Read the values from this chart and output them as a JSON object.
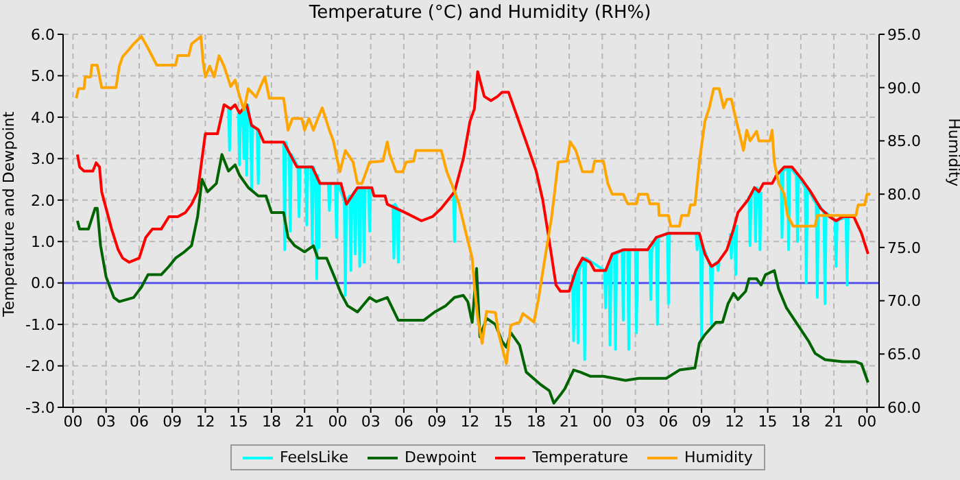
{
  "chart_data": {
    "type": "line",
    "title": "Temperature (°C) and Humidity (RH%)",
    "ylabel": "Temperature and Dewpoint",
    "y2label": "Humidity",
    "xlim": [
      -0.9,
      73.1
    ],
    "xticks": [
      {
        "value": 0,
        "label": "00"
      },
      {
        "value": 3,
        "label": "03"
      },
      {
        "value": 6,
        "label": "06"
      },
      {
        "value": 9,
        "label": "09"
      },
      {
        "value": 12,
        "label": "12"
      },
      {
        "value": 15,
        "label": "15"
      },
      {
        "value": 18,
        "label": "18"
      },
      {
        "value": 21,
        "label": "21"
      },
      {
        "value": 24,
        "label": "00"
      },
      {
        "value": 27,
        "label": "03"
      },
      {
        "value": 30,
        "label": "06"
      },
      {
        "value": 33,
        "label": "09"
      },
      {
        "value": 36,
        "label": "12"
      },
      {
        "value": 39,
        "label": "15"
      },
      {
        "value": 42,
        "label": "18"
      },
      {
        "value": 45,
        "label": "21"
      },
      {
        "value": 48,
        "label": "00"
      },
      {
        "value": 51,
        "label": "03"
      },
      {
        "value": 54,
        "label": "06"
      },
      {
        "value": 57,
        "label": "09"
      },
      {
        "value": 60,
        "label": "12"
      },
      {
        "value": 63,
        "label": "15"
      },
      {
        "value": 66,
        "label": "18"
      },
      {
        "value": 69,
        "label": "21"
      },
      {
        "value": 72,
        "label": "00"
      }
    ],
    "ylim": [
      -3,
      6
    ],
    "yticks": [
      {
        "value": -3,
        "label": "-3.0"
      },
      {
        "value": -2,
        "label": "-2.0"
      },
      {
        "value": -1,
        "label": "-1.0"
      },
      {
        "value": 0,
        "label": "0.0"
      },
      {
        "value": 1,
        "label": "1.0"
      },
      {
        "value": 2,
        "label": "2.0"
      },
      {
        "value": 3,
        "label": "3.0"
      },
      {
        "value": 4,
        "label": "4.0"
      },
      {
        "value": 5,
        "label": "5.0"
      },
      {
        "value": 6,
        "label": "6.0"
      }
    ],
    "y2lim": [
      60,
      95
    ],
    "y2ticks": [
      {
        "value": 60,
        "label": "60.0"
      },
      {
        "value": 65,
        "label": "65.0"
      },
      {
        "value": 70,
        "label": "70.0"
      },
      {
        "value": 75,
        "label": "75.0"
      },
      {
        "value": 80,
        "label": "80.0"
      },
      {
        "value": 85,
        "label": "85.0"
      },
      {
        "value": 90,
        "label": "90.0"
      },
      {
        "value": 95,
        "label": "95.0"
      }
    ],
    "grid": true,
    "legend": "bottom",
    "line_style": "solid",
    "marker": "none",
    "ref_lines": [
      {
        "axis": "y",
        "value": 0,
        "color": "#5555ee"
      }
    ],
    "series": [
      {
        "name": "FeelsLike",
        "color": "#00ffff",
        "x": [
          14.1,
          14.2,
          14.3,
          14.5,
          15.0,
          15.1,
          15.2,
          15.4,
          15.5,
          15.6,
          15.65,
          15.75,
          15.85,
          16.1,
          16.2,
          16.3,
          16.7,
          16.8,
          16.9,
          17.0,
          19.1,
          19.2,
          19.3,
          19.6,
          19.7,
          19.8,
          20.4,
          20.5,
          20.6,
          21.1,
          21.2,
          21.3,
          21.6,
          21.7,
          21.8,
          22.0,
          22.1,
          22.2,
          22.25,
          22.3,
          22.35,
          23.15,
          23.25,
          23.35,
          23.8,
          23.9,
          24.0,
          24.6,
          24.7,
          24.8,
          25.1,
          25.2,
          25.3,
          25.5,
          25.6,
          25.7,
          25.9,
          26.0,
          26.1,
          26.3,
          26.4,
          26.5,
          26.8,
          26.9,
          27.0,
          28.0,
          29.0,
          29.1,
          29.2,
          29.4,
          29.5,
          29.6,
          30.0,
          34.5,
          34.6,
          34.7,
          40.0,
          45.3,
          45.4,
          45.5,
          45.7,
          45.8,
          45.9,
          46.3,
          46.4,
          46.5,
          48.2,
          48.3,
          48.4,
          48.6,
          48.7,
          48.8,
          49.1,
          49.2,
          49.3,
          49.8,
          49.9,
          50.0,
          50.3,
          50.4,
          50.5,
          51.0,
          51.1,
          51.2,
          52.3,
          52.4,
          52.5,
          52.9,
          53.0,
          53.1,
          53.9,
          54.0,
          54.1,
          56.5,
          56.6,
          56.7,
          56.9,
          57.0,
          57.1,
          57.8,
          57.9,
          58.0,
          58.4,
          58.5,
          58.6,
          59.0,
          59.6,
          59.7,
          59.8,
          60.0,
          60.1,
          60.2,
          60.8,
          61.3,
          61.4,
          61.5,
          61.8,
          61.9,
          62.0,
          62.2,
          62.3,
          62.4,
          63.0,
          64.2,
          64.3,
          64.4,
          64.8,
          64.9,
          65.0,
          65.6,
          65.7,
          65.8,
          66.4,
          66.5,
          66.6,
          67.4,
          67.5,
          67.6,
          68.1,
          68.2,
          68.3,
          69.1,
          69.2,
          69.3,
          70.1,
          70.2,
          70.3
        ],
        "values": [
          4.2,
          3.2,
          4.2,
          null,
          4.1,
          2.85,
          4.1,
          4.2,
          3.0,
          4.2,
          4.3,
          2.6,
          4.3,
          3.8,
          2.25,
          3.8,
          3.7,
          2.4,
          3.7,
          null,
          3.4,
          0.8,
          3.4,
          3.1,
          1.25,
          3.1,
          2.8,
          1.6,
          2.8,
          2.8,
          1.4,
          2.8,
          2.8,
          0.95,
          2.8,
          2.6,
          0.1,
          2.6,
          2.4,
          0.85,
          2.4,
          2.4,
          1.75,
          2.4,
          2.4,
          1.1,
          2.4,
          2.0,
          -0.3,
          2.0,
          2.1,
          0.3,
          2.1,
          2.2,
          0.7,
          2.2,
          2.3,
          0.4,
          2.3,
          2.3,
          0.5,
          2.3,
          2.3,
          1.25,
          2.3,
          null,
          1.9,
          0.6,
          1.9,
          1.8,
          0.5,
          1.8,
          null,
          2.2,
          1.0,
          2.2,
          null,
          0.2,
          -1.4,
          0.2,
          0.3,
          -1.45,
          0.3,
          0.6,
          -1.85,
          0.6,
          0.3,
          -0.6,
          0.3,
          0.5,
          -1.5,
          0.5,
          0.7,
          -1.6,
          0.7,
          0.8,
          -0.9,
          0.8,
          0.8,
          -1.6,
          0.8,
          0.8,
          -1.2,
          0.8,
          0.8,
          -0.4,
          0.8,
          1.1,
          -1.0,
          1.1,
          1.2,
          -0.5,
          1.2,
          1.2,
          0.8,
          1.2,
          0.9,
          -1.35,
          0.9,
          0.4,
          -1.0,
          0.4,
          0.5,
          0.3,
          0.5,
          null,
          1.2,
          0.6,
          1.2,
          1.4,
          0.2,
          1.4,
          null,
          2.1,
          0.9,
          2.1,
          2.3,
          1.0,
          2.3,
          2.2,
          0.8,
          2.2,
          null,
          2.7,
          1.1,
          2.7,
          2.8,
          0.8,
          2.8,
          2.6,
          1.0,
          2.6,
          2.3,
          0.0,
          2.3,
          1.9,
          -0.35,
          1.9,
          1.7,
          -0.5,
          1.7,
          1.5,
          0.4,
          1.5,
          1.6,
          -0.05,
          1.6
        ]
      },
      {
        "name": "Dewpoint",
        "color": "#006400",
        "x": [
          0.4,
          0.6,
          1.4,
          2.0,
          2.2,
          2.5,
          3.0,
          3.7,
          4.2,
          5.5,
          6.2,
          6.8,
          8.0,
          8.7,
          9.3,
          10.1,
          10.75,
          11.3,
          11.7,
          12.2,
          13.0,
          13.5,
          14.1,
          14.7,
          15.1,
          15.9,
          16.8,
          17.5,
          18.0,
          19.1,
          19.5,
          20.1,
          21.0,
          21.8,
          22.2,
          23.0,
          23.7,
          24.3,
          24.9,
          25.8,
          26.9,
          27.5,
          28.5,
          29.5,
          31.8,
          32.8,
          33.8,
          34.6,
          35.4,
          35.8,
          36.2,
          36.6,
          36.9,
          37.5,
          38.3,
          38.9,
          39.3,
          39.7,
          40.5,
          41.1,
          42.4,
          43.2,
          43.6,
          44.2,
          44.6,
          45.4,
          46.0,
          46.9,
          48.1,
          50.1,
          51.3,
          53.8,
          55.0,
          56.4,
          56.8,
          57.3,
          58.3,
          58.9,
          59.4,
          59.9,
          60.3,
          61.0,
          61.3,
          62.0,
          62.4,
          62.8,
          63.6,
          64.0,
          64.7,
          65.7,
          66.7,
          67.3,
          68.2,
          69.8,
          71.0,
          71.5,
          72.1
        ],
        "values": [
          1.5,
          1.3,
          1.3,
          1.8,
          1.8,
          0.9,
          0.15,
          -0.35,
          -0.45,
          -0.35,
          -0.1,
          0.2,
          0.2,
          0.4,
          0.6,
          0.75,
          0.9,
          1.6,
          2.5,
          2.2,
          2.4,
          3.1,
          2.7,
          2.85,
          2.6,
          2.3,
          2.1,
          2.1,
          1.7,
          1.7,
          1.1,
          0.9,
          0.75,
          0.9,
          0.6,
          0.6,
          0.15,
          -0.25,
          -0.55,
          -0.7,
          -0.35,
          -0.45,
          -0.35,
          -0.9,
          -0.9,
          -0.7,
          -0.55,
          -0.35,
          -0.3,
          -0.45,
          -0.95,
          0.35,
          -1.3,
          -0.85,
          -1.0,
          -1.4,
          -1.55,
          -1.2,
          -1.5,
          -2.15,
          -2.45,
          -2.6,
          -2.9,
          -2.7,
          -2.55,
          -2.1,
          -2.15,
          -2.25,
          -2.25,
          -2.35,
          -2.3,
          -2.3,
          -2.1,
          -2.05,
          -1.45,
          -1.25,
          -0.95,
          -0.95,
          -0.5,
          -0.25,
          -0.4,
          -0.2,
          0.1,
          0.1,
          -0.05,
          0.2,
          0.3,
          -0.15,
          -0.6,
          -1.0,
          -1.4,
          -1.7,
          -1.85,
          -1.9,
          -1.9,
          -1.95,
          -2.4
        ]
      },
      {
        "name": "Temperature",
        "color": "#ff0000",
        "x": [
          0.4,
          0.6,
          1.0,
          1.8,
          2.1,
          2.4,
          2.6,
          3.0,
          3.5,
          4.1,
          4.5,
          5.1,
          6.0,
          6.6,
          7.2,
          8.0,
          8.7,
          9.5,
          10.2,
          10.75,
          11.3,
          11.7,
          12.0,
          13.1,
          13.7,
          14.3,
          14.7,
          15.1,
          15.75,
          16.2,
          16.8,
          17.3,
          19.1,
          19.7,
          20.3,
          21.2,
          21.7,
          22.4,
          24.3,
          24.8,
          25.8,
          27.1,
          27.3,
          28.3,
          28.5,
          30.1,
          31.6,
          32.6,
          33.4,
          34.6,
          35.4,
          36.0,
          36.4,
          36.7,
          37.3,
          37.9,
          38.5,
          38.9,
          39.5,
          40.3,
          41.1,
          42.0,
          42.6,
          43.2,
          43.8,
          44.2,
          45.0,
          45.6,
          46.2,
          46.9,
          47.3,
          48.3,
          48.9,
          49.9,
          52.1,
          52.9,
          54.0,
          56.8,
          57.3,
          57.9,
          58.5,
          59.3,
          59.9,
          60.3,
          61.2,
          61.8,
          62.2,
          62.6,
          63.4,
          63.8,
          64.5,
          65.2,
          66.1,
          66.9,
          67.8,
          68.6,
          69.2,
          69.8,
          70.8,
          71.5,
          72.1
        ],
        "values": [
          3.1,
          2.8,
          2.7,
          2.7,
          2.9,
          2.8,
          2.2,
          1.8,
          1.3,
          0.8,
          0.6,
          0.5,
          0.6,
          1.1,
          1.3,
          1.3,
          1.6,
          1.6,
          1.7,
          1.9,
          2.2,
          3.0,
          3.6,
          3.6,
          4.3,
          4.2,
          4.3,
          4.1,
          4.3,
          3.8,
          3.7,
          3.4,
          3.4,
          3.1,
          2.8,
          2.8,
          2.8,
          2.4,
          2.4,
          1.9,
          2.3,
          2.3,
          2.1,
          2.1,
          1.9,
          1.7,
          1.5,
          1.6,
          1.8,
          2.2,
          3.0,
          3.9,
          4.2,
          5.1,
          4.5,
          4.4,
          4.5,
          4.6,
          4.6,
          4.0,
          3.4,
          2.7,
          2.0,
          1.0,
          -0.05,
          -0.2,
          -0.2,
          0.3,
          0.6,
          0.5,
          0.3,
          0.3,
          0.7,
          0.8,
          0.8,
          1.1,
          1.2,
          1.2,
          0.7,
          0.4,
          0.5,
          0.8,
          1.3,
          1.7,
          2.0,
          2.3,
          2.2,
          2.4,
          2.4,
          2.6,
          2.8,
          2.8,
          2.5,
          2.2,
          1.8,
          1.6,
          1.5,
          1.6,
          1.6,
          1.2,
          0.7
        ]
      },
      {
        "name": "Humidity",
        "color": "#ffa500",
        "axis": "y2",
        "x": [
          0.3,
          0.5,
          1.0,
          1.1,
          1.6,
          1.7,
          2.2,
          2.6,
          3.9,
          4.2,
          4.5,
          5.1,
          5.5,
          6.2,
          6.8,
          7.6,
          9.3,
          9.5,
          10.5,
          10.75,
          11.6,
          11.8,
          12.0,
          12.4,
          12.8,
          13.25,
          13.7,
          14.3,
          14.7,
          15.1,
          15.5,
          15.9,
          16.6,
          17.0,
          17.4,
          17.8,
          19.1,
          19.5,
          19.9,
          20.75,
          21.0,
          21.4,
          21.8,
          22.2,
          22.6,
          23.25,
          23.6,
          24.2,
          24.7,
          25.4,
          25.8,
          26.2,
          26.9,
          28.1,
          28.5,
          28.7,
          29.3,
          29.9,
          30.2,
          30.9,
          31.1,
          33.4,
          33.9,
          34.4,
          35.0,
          35.6,
          36.2,
          36.4,
          36.7,
          37.1,
          37.5,
          38.3,
          38.6,
          39.3,
          39.7,
          40.5,
          40.8,
          41.8,
          42.2,
          42.8,
          43.4,
          44.0,
          44.8,
          45.1,
          45.6,
          46.2,
          47.1,
          47.3,
          48.1,
          48.5,
          48.9,
          49.9,
          50.3,
          51.1,
          51.3,
          52.1,
          52.3,
          53.1,
          53.15,
          54.0,
          54.2,
          55.0,
          55.2,
          55.8,
          56.0,
          56.4,
          56.8,
          57.3,
          57.7,
          58.1,
          58.6,
          58.8,
          59.0,
          59.3,
          59.7,
          60.1,
          60.6,
          60.8,
          61.1,
          61.4,
          62.0,
          62.2,
          63.2,
          63.4,
          63.6,
          64.0,
          64.5,
          64.8,
          65.3,
          67.3,
          67.5,
          71.0,
          71.2,
          71.8,
          72.0,
          72.3
        ],
        "values": [
          89.0,
          89.9,
          89.9,
          91.0,
          91.0,
          92.1,
          92.1,
          90.0,
          90.0,
          92.0,
          92.9,
          93.6,
          94.1,
          94.8,
          93.7,
          92.1,
          92.1,
          93.0,
          93.0,
          94.1,
          94.8,
          92.4,
          91.0,
          92.0,
          91.0,
          93.0,
          92.0,
          90.1,
          90.7,
          89.2,
          87.9,
          89.9,
          89.1,
          90.1,
          91.0,
          89.0,
          89.0,
          86.0,
          87.1,
          87.1,
          86.0,
          87.1,
          86.0,
          87.1,
          88.1,
          86.0,
          85.0,
          82.1,
          84.1,
          83.0,
          81.0,
          81.0,
          83.0,
          83.1,
          84.9,
          83.8,
          82.1,
          82.1,
          83.0,
          83.1,
          84.1,
          84.1,
          82.1,
          80.8,
          79.1,
          76.5,
          74.0,
          71.4,
          68.4,
          66.0,
          69.0,
          68.9,
          66.9,
          64.1,
          67.7,
          68.0,
          68.8,
          68.0,
          70.1,
          74.0,
          77.8,
          83.0,
          83.1,
          84.9,
          84.1,
          82.1,
          82.1,
          83.1,
          83.1,
          81.0,
          80.0,
          80.0,
          79.1,
          79.1,
          80.0,
          80.0,
          79.1,
          79.1,
          78.0,
          78.0,
          77.0,
          77.0,
          78.0,
          78.0,
          79.0,
          79.0,
          83.0,
          86.8,
          88.1,
          89.9,
          89.9,
          89.0,
          88.1,
          88.9,
          88.9,
          87.1,
          85.0,
          84.1,
          86.0,
          85.0,
          85.9,
          85.0,
          85.0,
          86.0,
          83.0,
          81.0,
          80.0,
          78.0,
          77.0,
          77.0,
          78.0,
          78.0,
          79.0,
          79.0,
          80.0,
          80.0
        ]
      }
    ]
  }
}
